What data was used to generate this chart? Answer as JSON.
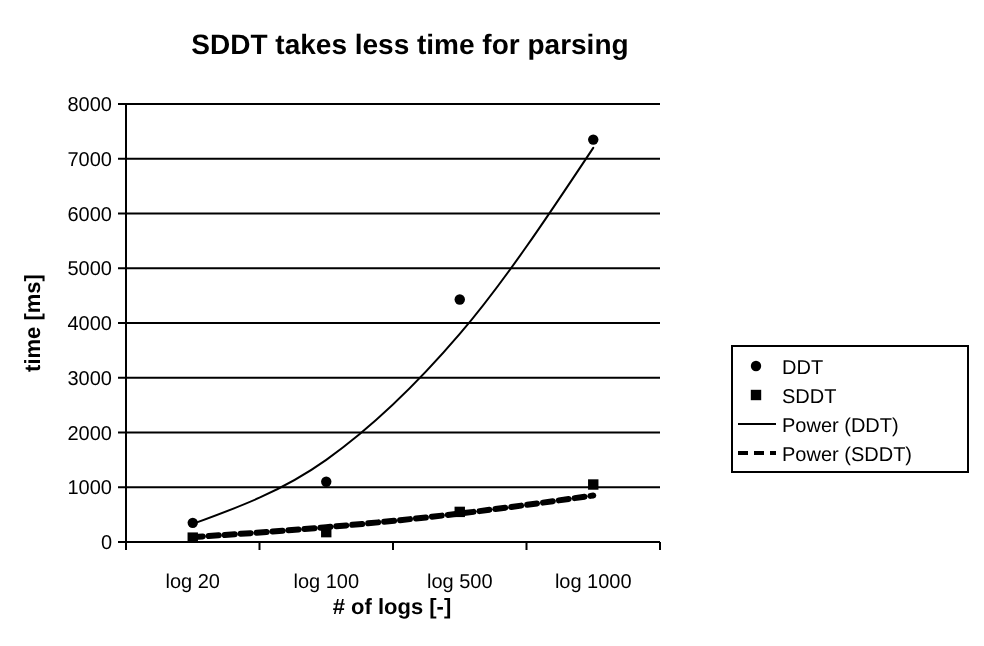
{
  "chart_data": {
    "type": "scatter",
    "title": "SDDT takes less time for parsing",
    "xlabel": "# of logs [-]",
    "ylabel": "time [ms]",
    "categories": [
      "log 20",
      "log 100",
      "log 500",
      "log 1000"
    ],
    "series": [
      {
        "name": "DDT",
        "marker": "circle",
        "color": "#000000",
        "values": [
          350,
          1100,
          4430,
          7350
        ]
      },
      {
        "name": "SDDT",
        "marker": "square",
        "color": "#000000",
        "values": [
          80,
          180,
          550,
          1050
        ]
      },
      {
        "name": "Power (DDT)",
        "type": "line",
        "line_style": "solid",
        "color": "#000000",
        "values": [
          330,
          1500,
          3800,
          7200
        ]
      },
      {
        "name": "Power (SDDT)",
        "type": "line",
        "line_style": "dashed",
        "color": "#000000",
        "values": [
          90,
          270,
          520,
          850
        ]
      }
    ],
    "ylim": [
      0,
      8000
    ],
    "yticks": [
      0,
      1000,
      2000,
      3000,
      4000,
      5000,
      6000,
      7000,
      8000
    ],
    "grid": "y",
    "legend": "right"
  }
}
